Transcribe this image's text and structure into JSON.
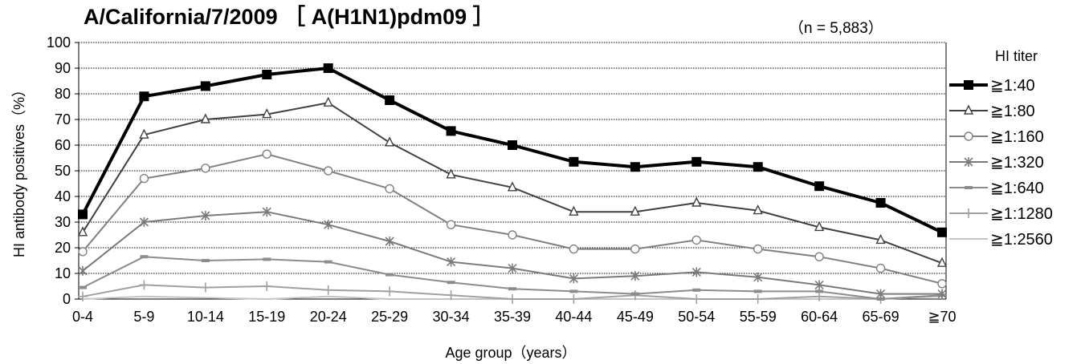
{
  "chart_data": {
    "type": "line",
    "title": "A/California/7/2009 ［ A(H1N1)pdm09 ］",
    "note": "（n = 5,883）",
    "xlabel": "Age group（years）",
    "ylabel": "HI antibody positives（%）",
    "ylim": [
      0,
      100
    ],
    "yticks": [
      0,
      10,
      20,
      30,
      40,
      50,
      60,
      70,
      80,
      90,
      100
    ],
    "grid": "horizontal dotted",
    "legend_title": "HI titer",
    "legend_position": "right",
    "categories": [
      "0-4",
      "5-9",
      "10-14",
      "15-19",
      "20-24",
      "25-29",
      "30-34",
      "35-39",
      "40-44",
      "45-49",
      "50-54",
      "55-59",
      "60-64",
      "65-69",
      "≧70"
    ],
    "series": [
      {
        "name": "≧1:40",
        "marker": "square",
        "color": "#000000",
        "values": [
          33,
          79,
          83,
          87.5,
          90,
          77.5,
          65.5,
          60,
          53.5,
          51.5,
          53.5,
          51.5,
          44,
          37.5,
          26
        ]
      },
      {
        "name": "≧1:80",
        "marker": "triangle",
        "color": "#404040",
        "values": [
          26,
          64,
          70,
          72,
          76.5,
          61,
          48.5,
          43.5,
          34,
          34,
          37.5,
          34.5,
          28,
          23,
          14
        ]
      },
      {
        "name": "≧1:160",
        "marker": "circle",
        "color": "#808080",
        "values": [
          18.5,
          47,
          51,
          56.5,
          50,
          43,
          29,
          25,
          19.5,
          19.5,
          23,
          19.5,
          16.5,
          12,
          6
        ]
      },
      {
        "name": "≧1:320",
        "marker": "star",
        "color": "#7a7a7a",
        "values": [
          11,
          30,
          32.5,
          34,
          29,
          22.5,
          14.5,
          12,
          8,
          9,
          10.5,
          8.5,
          5.5,
          2,
          2
        ]
      },
      {
        "name": "≧1:640",
        "marker": "dash",
        "color": "#8c8c8c",
        "values": [
          4.5,
          16.5,
          15,
          15.5,
          14.5,
          9.5,
          6.5,
          4,
          3,
          2,
          3.5,
          3,
          3,
          0,
          1.5
        ]
      },
      {
        "name": "≧1:1280",
        "marker": "plus",
        "color": "#a0a0a0",
        "values": [
          1,
          5.5,
          4.5,
          5,
          3.5,
          3,
          1.5,
          0,
          0,
          1.5,
          0,
          0,
          1,
          0,
          1.5
        ]
      },
      {
        "name": "≧1:2560",
        "marker": "none",
        "color": "#c4c4c4",
        "values": [
          0,
          1,
          0.5,
          0,
          1,
          0,
          0,
          0,
          0,
          0,
          0,
          0,
          0,
          0,
          1
        ]
      }
    ]
  }
}
